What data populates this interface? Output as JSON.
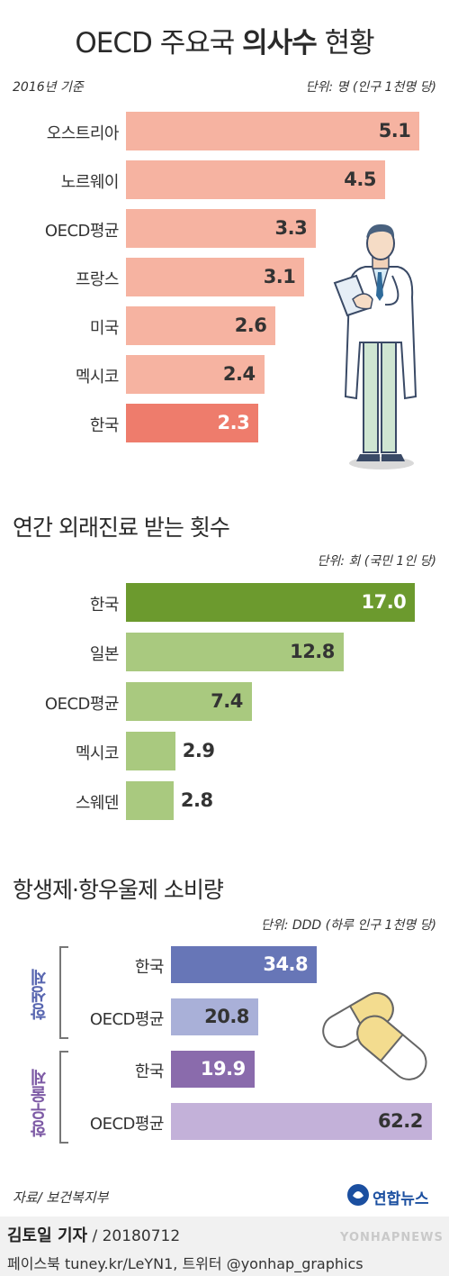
{
  "title": {
    "prefix": "OECD 주요국 ",
    "bold": "의사수",
    "suffix": " 현황"
  },
  "chart1": {
    "basis": "2016년 기준",
    "unit": "단위: 명 (인구 1천명 당)",
    "colors": {
      "bar": "#f6b3a1",
      "highlight": "#ee7c6c"
    }
  },
  "chart2": {
    "title": "연간 외래진료 받는 횟수",
    "unit": "단위: 회 (국민 1인 당)",
    "colors": {
      "bar": "#a9c97f",
      "highlight": "#6c9a2e"
    }
  },
  "chart3": {
    "title": "항생제·항우울제 소비량",
    "unit": "단위: DDD (하루 인구 1천명 당)",
    "group1": "항생제",
    "group2": "항우울제",
    "colors": {
      "g1_korea": "#6776b7",
      "g1_oecd": "#a9b0d8",
      "g2_korea": "#8a6bac",
      "g2_oecd": "#c3b1d9",
      "g1_label": "#5866b0",
      "g2_label": "#7d5aa5"
    }
  },
  "chart_data": [
    {
      "type": "bar",
      "title": "OECD 주요국 의사수 현황",
      "orientation": "horizontal",
      "categories": [
        "오스트리아",
        "노르웨이",
        "OECD평균",
        "프랑스",
        "미국",
        "멕시코",
        "한국"
      ],
      "values": [
        5.1,
        4.5,
        3.3,
        3.1,
        2.6,
        2.4,
        2.3
      ],
      "value_labels": [
        "5.1",
        "4.5",
        "3.3",
        "3.1",
        "2.6",
        "2.4",
        "2.3"
      ],
      "highlight": "한국"
    },
    {
      "type": "bar",
      "title": "연간 외래진료 받는 횟수",
      "orientation": "horizontal",
      "categories": [
        "한국",
        "일본",
        "OECD평균",
        "멕시코",
        "스웨덴"
      ],
      "values": [
        17.0,
        12.8,
        7.4,
        2.9,
        2.8
      ],
      "value_labels": [
        "17.0",
        "12.8",
        "7.4",
        "2.9",
        "2.8"
      ],
      "highlight": "한국"
    },
    {
      "type": "bar",
      "title": "항생제·항우울제 소비량",
      "orientation": "horizontal",
      "groups": [
        "항생제",
        "항생제",
        "항우울제",
        "항우울제"
      ],
      "categories": [
        "한국",
        "OECD평균",
        "한국",
        "OECD평균"
      ],
      "values": [
        34.8,
        20.8,
        19.9,
        62.2
      ],
      "value_labels": [
        "34.8",
        "20.8",
        "19.9",
        "62.2"
      ]
    }
  ],
  "footer": {
    "source": "자료/ 보건복지부",
    "logo": "연합뉴스",
    "reporter": "김토일 기자",
    "date": " / 20180712",
    "social": "페이스북 tuney.kr/LeYN1, 트위터 @yonhap_graphics",
    "watermark": "YONHAPNEWS"
  }
}
